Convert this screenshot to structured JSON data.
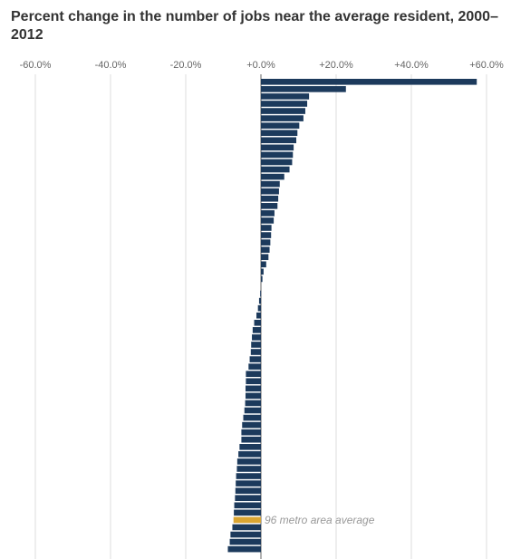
{
  "chart_data": {
    "type": "bar",
    "orientation": "horizontal",
    "title": "Percent change in the number of jobs near the average resident, 2000–2012",
    "xlabel": "",
    "ylabel": "",
    "xlim": [
      -0.6,
      0.6
    ],
    "ticks": [
      -0.6,
      -0.4,
      -0.2,
      0,
      0.2,
      0.4,
      0.6
    ],
    "tick_labels": [
      "-60.0%",
      "-40.0%",
      "-20.0%",
      "+0.0%",
      "+20.0%",
      "+40.0%",
      "+60.0%"
    ],
    "grid": true,
    "values": [
      0.574,
      0.226,
      0.128,
      0.123,
      0.118,
      0.113,
      0.102,
      0.097,
      0.094,
      0.087,
      0.085,
      0.083,
      0.076,
      0.062,
      0.05,
      0.048,
      0.046,
      0.044,
      0.036,
      0.034,
      0.028,
      0.027,
      0.025,
      0.023,
      0.02,
      0.014,
      0.007,
      0.004,
      0.0,
      -0.002,
      -0.005,
      -0.008,
      -0.012,
      -0.018,
      -0.022,
      -0.024,
      -0.026,
      -0.027,
      -0.03,
      -0.033,
      -0.04,
      -0.04,
      -0.041,
      -0.041,
      -0.042,
      -0.044,
      -0.047,
      -0.05,
      -0.052,
      -0.052,
      -0.057,
      -0.06,
      -0.063,
      -0.064,
      -0.066,
      -0.067,
      -0.068,
      -0.069,
      -0.071,
      -0.072,
      -0.073,
      -0.076,
      -0.081,
      -0.083,
      -0.088
    ],
    "highlight_index": 60,
    "highlight_label": "96 metro area average",
    "colors": {
      "bar": "#1c3a5c",
      "highlight": "#d9a532",
      "grid": "#dddddd",
      "zero_line": "#666666"
    }
  }
}
